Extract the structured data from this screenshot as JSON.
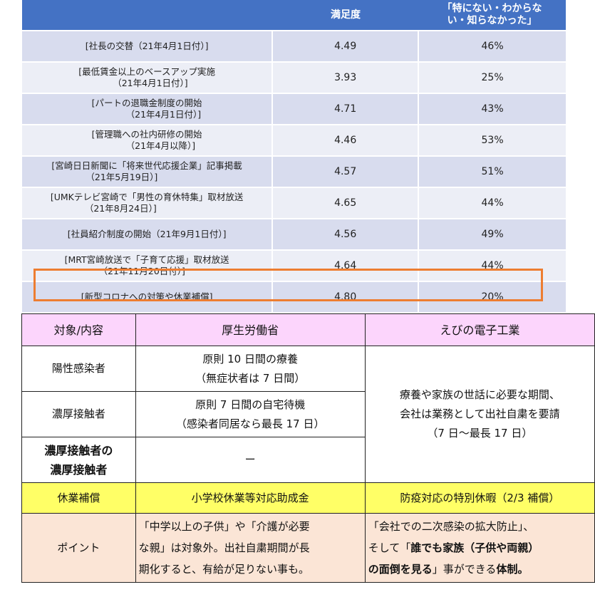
{
  "top_table": {
    "headers": [
      "",
      "満足度",
      "「特にない・わからない・知らなかった」"
    ],
    "header_lines": [
      "「特にない・わからな",
      "い・知らなかった」"
    ],
    "rows": [
      {
        "item": [
          "[社長の交替（21年4月1日付）]"
        ],
        "score": "4.49",
        "unknown": "46%"
      },
      {
        "item": [
          "[最低賃金以上のベースアップ実施",
          "（21年4月1日付）]"
        ],
        "score": "3.93",
        "unknown": "25%"
      },
      {
        "item": [
          "[パートの退職金制度の開始",
          "（21年4月1日付）]"
        ],
        "score": "4.71",
        "unknown": "43%"
      },
      {
        "item": [
          "[管理職への社内研修の開始",
          "（21年4月以降）]"
        ],
        "score": "4.46",
        "unknown": "53%"
      },
      {
        "item": [
          "[宮崎日日新聞に「将来世代応援企業」記事掲載",
          "（21年5月19日）]"
        ],
        "score": "4.57",
        "unknown": "51%"
      },
      {
        "item": [
          "[UMKテレビ宮崎で「男性の育休特集」取材放送",
          "（21年8月24日）]"
        ],
        "score": "4.65",
        "unknown": "44%"
      },
      {
        "item": [
          "[社員紹介制度の開始（21年9月1日付）]"
        ],
        "score": "4.56",
        "unknown": "49%"
      },
      {
        "item": [
          "[MRT宮崎放送で「子育て応援」取材放送",
          "（21年11月20日付）]"
        ],
        "score": "4.64",
        "unknown": "44%"
      },
      {
        "item": [
          "[新型コロナへの対策や休業補償]"
        ],
        "score": "4.80",
        "unknown": "20%"
      }
    ],
    "highlight_color": "#ed7d31",
    "header_color": "#4472c4"
  },
  "bottom_table": {
    "headers": {
      "col1": "対象/内容",
      "col2": "厚生労働省",
      "col3": "えびの電子工業"
    },
    "rows": {
      "positive": {
        "label": "陽性感染者",
        "mhlw_1": "原則 10 日間の療養",
        "mhlw_2": "（無症状者は 7 日間）"
      },
      "close": {
        "label": "濃厚接触者",
        "mhlw_1": "原則 7 日間の自宅待機",
        "mhlw_2": "（感染者同居なら最長 17 日）"
      },
      "close_of_close": {
        "label_1": "濃厚接触者の",
        "label_2": "濃厚接触者",
        "mhlw": "ー"
      },
      "ebino_merged": {
        "line1": "療養や家族の世話に必要な期間、",
        "line2": "会社は業務として出社自粛を要請",
        "line3": "（7 日～最長 17 日）"
      }
    },
    "compensation": {
      "label": "休業補償",
      "mhlw": "小学校休業等対応助成金",
      "ebino": "防疫対応の特別休暇（2/3 補償）"
    },
    "point": {
      "label": "ポイント",
      "mhlw_1": "「中学以上の子供」や「介護が必要",
      "mhlw_2": "な親」は対象外。出社自粛期間が長",
      "mhlw_3": "期化すると、有給が足りない事も。",
      "ebino_1": "「会社での二次感染の拡大防止」、",
      "ebino_2a": "そして「",
      "ebino_2b": "誰でも家族（子供や両親）",
      "ebino_3a": "の面倒を見る",
      "ebino_3b": "」事ができる",
      "ebino_3c": "体制。"
    },
    "colors": {
      "header": "#fcd5fc",
      "compensation": "#ffff66",
      "point": "#fbe5d6"
    }
  }
}
